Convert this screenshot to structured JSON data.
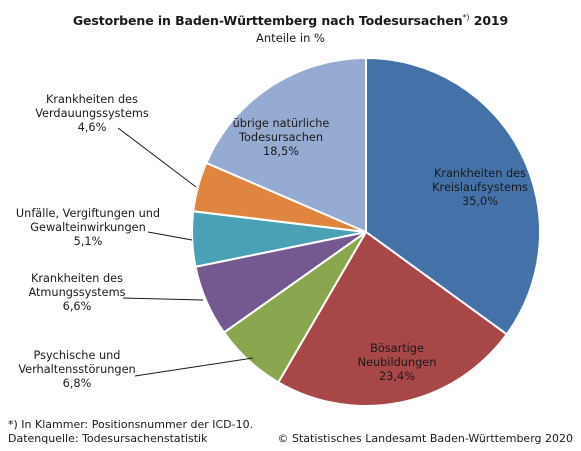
{
  "chart_data": {
    "type": "pie",
    "title": "Gestorbene in Baden-Württemberg nach Todesursachen",
    "title_superscript": "*)",
    "title_year": "2019",
    "subtitle": "Anteile in %",
    "start_angle_deg": 0,
    "direction": "clockwise",
    "slices": [
      {
        "lines": [
          "Krankheiten des",
          "Kreislaufsystems"
        ],
        "value": 35.0,
        "value_label": "35,0%",
        "color": "#4472a8",
        "label_position": "inside"
      },
      {
        "lines": [
          "Bösartige",
          "Neubildungen"
        ],
        "value": 23.4,
        "value_label": "23,4%",
        "color": "#a84747",
        "label_position": "inside"
      },
      {
        "lines": [
          "Psychische und",
          "Verhaltensstörungen"
        ],
        "value": 6.8,
        "value_label": "6,8%",
        "color": "#8aa64e",
        "label_position": "outside"
      },
      {
        "lines": [
          "Krankheiten des",
          "Atmungssystems"
        ],
        "value": 6.6,
        "value_label": "6,6%",
        "color": "#73598f",
        "label_position": "outside"
      },
      {
        "lines": [
          "Unfälle, Vergiftungen und",
          "Gewalteinwirkungen"
        ],
        "value": 5.1,
        "value_label": "5,1%",
        "color": "#4aa1b6",
        "label_position": "outside"
      },
      {
        "lines": [
          "Krankheiten des",
          "Verdauungssystems"
        ],
        "value": 4.6,
        "value_label": "4,6%",
        "color": "#e0853f",
        "label_position": "outside"
      },
      {
        "lines": [
          "übrige natürliche",
          "Todesursachen"
        ],
        "value": 18.5,
        "value_label": "18,5%",
        "color": "#96abd1",
        "label_position": "inside"
      }
    ]
  },
  "footer": {
    "note": "*) In Klammer: Positionsnummer der ICD-10.",
    "source": "Datenquelle: Todesursachenstatistik",
    "copyright": "© Statistisches Landesamt Baden-Württemberg 2020"
  }
}
